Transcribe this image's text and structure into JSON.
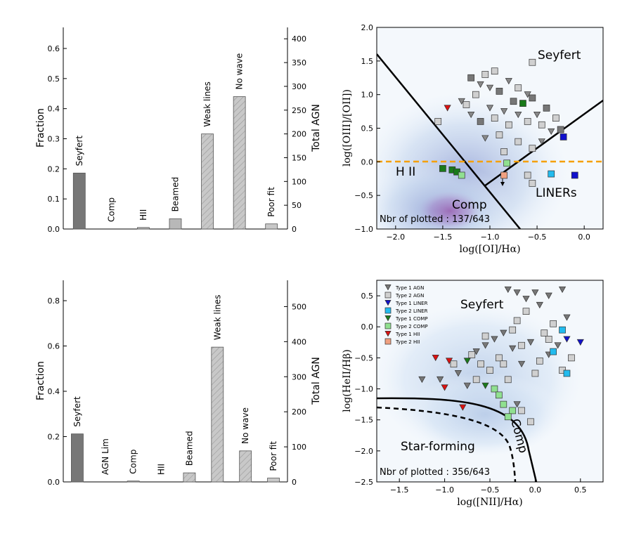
{
  "chart_data": [
    {
      "type": "bar",
      "id": "top-left",
      "categories": [
        "Seyfert",
        "Comp",
        "HII",
        "Beamed",
        "Weak lines",
        "No wave",
        "Poor fit"
      ],
      "values": [
        0.186,
        0.0,
        0.005,
        0.034,
        0.316,
        0.44,
        0.017
      ],
      "colors": [
        "#777777",
        "#b8b8b8",
        "#b8b8b8",
        "#b8b8b8",
        "#c8c8c8",
        "#c8c8c8",
        "#c8c8c8"
      ],
      "hatched": [
        false,
        false,
        false,
        false,
        true,
        true,
        false
      ],
      "ylabel": "Fraction",
      "ylabel_right": "Total AGN",
      "ylim": [
        0,
        0.67
      ],
      "yticks": [
        0.0,
        0.1,
        0.2,
        0.3,
        0.4,
        0.5,
        0.6
      ],
      "ytick_labels": [
        "0.0",
        "0.1",
        "0.2",
        "0.3",
        "0.4",
        "0.5",
        "0.6"
      ],
      "right_ylim": [
        0,
        424
      ],
      "right_yticks": [
        0,
        50,
        100,
        150,
        200,
        250,
        300,
        350,
        400
      ],
      "right_ytick_labels": [
        "0",
        "50",
        "100",
        "150",
        "200",
        "250",
        "300",
        "350",
        "400"
      ]
    },
    {
      "type": "scatter",
      "id": "top-right",
      "xlabel": "log([OI]/Hα)",
      "ylabel": "log([OIII]/[OII])",
      "xlim": [
        -2.2,
        0.2
      ],
      "ylim": [
        -1.0,
        2.0
      ],
      "xticks": [
        -2.0,
        -1.5,
        -1.0,
        -0.5,
        0.0
      ],
      "xtick_labels": [
        "−2.0",
        "−1.5",
        "−1.0",
        "−0.5",
        "0.0"
      ],
      "yticks": [
        -1.0,
        -0.5,
        0.0,
        0.5,
        1.0,
        1.5,
        2.0
      ],
      "ytick_labels": [
        "−1.0",
        "−0.5",
        "0.0",
        "0.5",
        "1.0",
        "1.5",
        "2.0"
      ],
      "region_labels": [
        "Seyfert",
        "H II",
        "Comp",
        "LINERs"
      ],
      "annotation": "Nbr of plotted : 137/643",
      "threshold_y": 0.0,
      "points": [
        {
          "x": -0.55,
          "y": 1.48,
          "m": "s",
          "c": "#d0d0d0"
        },
        {
          "x": -1.2,
          "y": 1.25,
          "m": "s",
          "c": "#777777"
        },
        {
          "x": -1.05,
          "y": 1.3,
          "m": "s",
          "c": "#d0d0d0"
        },
        {
          "x": -0.95,
          "y": 1.35,
          "m": "s",
          "c": "#d0d0d0"
        },
        {
          "x": -1.1,
          "y": 1.15,
          "m": "v",
          "c": "#888888"
        },
        {
          "x": -1.15,
          "y": 1.0,
          "m": "s",
          "c": "#d0d0d0"
        },
        {
          "x": -1.0,
          "y": 1.1,
          "m": "v",
          "c": "#888888"
        },
        {
          "x": -0.9,
          "y": 1.05,
          "m": "s",
          "c": "#777777"
        },
        {
          "x": -0.8,
          "y": 1.2,
          "m": "v",
          "c": "#888888"
        },
        {
          "x": -0.7,
          "y": 1.1,
          "m": "s",
          "c": "#d0d0d0"
        },
        {
          "x": -0.6,
          "y": 1.0,
          "m": "v",
          "c": "#888888"
        },
        {
          "x": -0.55,
          "y": 0.95,
          "m": "s",
          "c": "#777777"
        },
        {
          "x": -0.65,
          "y": 0.87,
          "m": "s",
          "c": "#1a7a1a"
        },
        {
          "x": -1.3,
          "y": 0.9,
          "m": "v",
          "c": "#888888"
        },
        {
          "x": -1.25,
          "y": 0.85,
          "m": "s",
          "c": "#d0d0d0"
        },
        {
          "x": -1.45,
          "y": 0.8,
          "m": "v",
          "c": "#dd1111"
        },
        {
          "x": -1.55,
          "y": 0.6,
          "m": "s",
          "c": "#d0d0d0"
        },
        {
          "x": -1.2,
          "y": 0.7,
          "m": "v",
          "c": "#888888"
        },
        {
          "x": -1.1,
          "y": 0.6,
          "m": "s",
          "c": "#777777"
        },
        {
          "x": -1.0,
          "y": 0.8,
          "m": "v",
          "c": "#888888"
        },
        {
          "x": -0.95,
          "y": 0.65,
          "m": "s",
          "c": "#d0d0d0"
        },
        {
          "x": -0.85,
          "y": 0.75,
          "m": "v",
          "c": "#888888"
        },
        {
          "x": -0.8,
          "y": 0.55,
          "m": "s",
          "c": "#d0d0d0"
        },
        {
          "x": -0.75,
          "y": 0.9,
          "m": "s",
          "c": "#777777"
        },
        {
          "x": -0.7,
          "y": 0.7,
          "m": "v",
          "c": "#888888"
        },
        {
          "x": -0.6,
          "y": 0.6,
          "m": "s",
          "c": "#d0d0d0"
        },
        {
          "x": -0.5,
          "y": 0.7,
          "m": "v",
          "c": "#888888"
        },
        {
          "x": -0.45,
          "y": 0.55,
          "m": "s",
          "c": "#d0d0d0"
        },
        {
          "x": -0.4,
          "y": 0.8,
          "m": "s",
          "c": "#777777"
        },
        {
          "x": -0.35,
          "y": 0.45,
          "m": "v",
          "c": "#888888"
        },
        {
          "x": -0.3,
          "y": 0.65,
          "m": "s",
          "c": "#d0d0d0"
        },
        {
          "x": -0.25,
          "y": 0.48,
          "m": "s",
          "c": "#777777"
        },
        {
          "x": -0.22,
          "y": 0.37,
          "m": "s",
          "c": "#1111cc"
        },
        {
          "x": -0.9,
          "y": 0.4,
          "m": "s",
          "c": "#d0d0d0"
        },
        {
          "x": -1.05,
          "y": 0.35,
          "m": "v",
          "c": "#888888"
        },
        {
          "x": -0.7,
          "y": 0.3,
          "m": "s",
          "c": "#d0d0d0"
        },
        {
          "x": -0.55,
          "y": 0.2,
          "m": "s",
          "c": "#d0d0d0"
        },
        {
          "x": -0.45,
          "y": 0.3,
          "m": "v",
          "c": "#888888"
        },
        {
          "x": -0.85,
          "y": 0.15,
          "m": "s",
          "c": "#d0d0d0"
        },
        {
          "x": -1.4,
          "y": -0.12,
          "m": "s",
          "c": "#1a7a1a"
        },
        {
          "x": -1.35,
          "y": -0.15,
          "m": "s",
          "c": "#1a7a1a"
        },
        {
          "x": -1.3,
          "y": -0.2,
          "m": "s",
          "c": "#90e090"
        },
        {
          "x": -1.5,
          "y": -0.1,
          "m": "s",
          "c": "#1a7a1a"
        },
        {
          "x": -0.82,
          "y": -0.02,
          "m": "s",
          "c": "#90e090"
        },
        {
          "x": -0.85,
          "y": -0.2,
          "m": "s",
          "c": "#f0a080"
        },
        {
          "x": -0.35,
          "y": -0.18,
          "m": "s",
          "c": "#22bbee"
        },
        {
          "x": -0.1,
          "y": -0.2,
          "m": "s",
          "c": "#1111cc"
        },
        {
          "x": -0.55,
          "y": -0.32,
          "m": "s",
          "c": "#d0d0d0"
        },
        {
          "x": -0.6,
          "y": -0.2,
          "m": "s",
          "c": "#d0d0d0"
        }
      ]
    },
    {
      "type": "bar",
      "id": "bottom-left",
      "categories": [
        "Seyfert",
        "AGN Lim",
        "Comp",
        "HII",
        "Beamed",
        "Weak lines",
        "No wave",
        "Poor fit"
      ],
      "values": [
        0.212,
        0.0,
        0.004,
        0.0,
        0.04,
        0.595,
        0.137,
        0.017
      ],
      "colors": [
        "#777777",
        "#b8b8b8",
        "#b8b8b8",
        "#b8b8b8",
        "#c8c8c8",
        "#c8c8c8",
        "#c8c8c8",
        "#c8c8c8"
      ],
      "hatched": [
        false,
        false,
        false,
        false,
        true,
        true,
        true,
        false
      ],
      "ylabel": "Fraction",
      "ylabel_right": "Total AGN",
      "ylim": [
        0,
        0.89
      ],
      "yticks": [
        0.0,
        0.2,
        0.4,
        0.6,
        0.8
      ],
      "ytick_labels": [
        "0.0",
        "0.2",
        "0.4",
        "0.6",
        "0.8"
      ],
      "right_ylim": [
        0,
        575
      ],
      "right_yticks": [
        0,
        100,
        200,
        300,
        400,
        500
      ],
      "right_ytick_labels": [
        "0",
        "100",
        "200",
        "300",
        "400",
        "500"
      ]
    },
    {
      "type": "scatter",
      "id": "bottom-right",
      "xlabel": "log([NII]/Hα)",
      "ylabel": "log(HeII/Hβ)",
      "xlim": [
        -1.75,
        0.75
      ],
      "ylim": [
        -2.5,
        0.75
      ],
      "xticks": [
        -1.5,
        -1.0,
        -0.5,
        0.0,
        0.5
      ],
      "xtick_labels": [
        "−1.5",
        "−1.0",
        "−0.5",
        "0.0",
        "0.5"
      ],
      "yticks": [
        -2.5,
        -2.0,
        -1.5,
        -1.0,
        -0.5,
        0.0,
        0.5
      ],
      "ytick_labels": [
        "−2.5",
        "−2.0",
        "−1.5",
        "−1.0",
        "−0.5",
        "0.0",
        "0.5"
      ],
      "region_labels": [
        "Seyfert",
        "Star-forming",
        "Comp"
      ],
      "annotation": "Nbr of plotted : 356/643",
      "legend": [
        {
          "label": "Type 1 AGN",
          "m": "v",
          "c": "#777777"
        },
        {
          "label": "Type 2 AGN",
          "m": "s",
          "c": "#d0d0d0"
        },
        {
          "label": "Type 1 LINER",
          "m": "v",
          "c": "#1111cc"
        },
        {
          "label": "Type 2 LINER",
          "m": "s",
          "c": "#22bbee"
        },
        {
          "label": "Type 1 COMP",
          "m": "v",
          "c": "#1a7a1a"
        },
        {
          "label": "Type 2 COMP",
          "m": "s",
          "c": "#90e090"
        },
        {
          "label": "Type 1 HII",
          "m": "v",
          "c": "#dd1111"
        },
        {
          "label": "Type 2 HII",
          "m": "s",
          "c": "#f0a080"
        }
      ],
      "points": [
        {
          "x": -1.1,
          "y": -0.5,
          "m": "v",
          "c": "#dd1111"
        },
        {
          "x": -0.95,
          "y": -0.55,
          "m": "v",
          "c": "#dd1111"
        },
        {
          "x": -1.0,
          "y": -0.98,
          "m": "v",
          "c": "#dd1111"
        },
        {
          "x": -0.8,
          "y": -1.3,
          "m": "v",
          "c": "#dd1111"
        },
        {
          "x": -1.25,
          "y": -0.85,
          "m": "v",
          "c": "#777777"
        },
        {
          "x": -1.05,
          "y": -0.85,
          "m": "v",
          "c": "#777777"
        },
        {
          "x": -0.75,
          "y": -0.55,
          "m": "v",
          "c": "#1a7a1a"
        },
        {
          "x": -0.55,
          "y": -0.95,
          "m": "v",
          "c": "#1a7a1a"
        },
        {
          "x": -0.9,
          "y": -0.6,
          "m": "s",
          "c": "#d0d0d0"
        },
        {
          "x": -0.85,
          "y": -0.75,
          "m": "v",
          "c": "#777777"
        },
        {
          "x": -0.7,
          "y": -0.45,
          "m": "s",
          "c": "#d0d0d0"
        },
        {
          "x": -0.65,
          "y": -0.4,
          "m": "v",
          "c": "#777777"
        },
        {
          "x": -0.6,
          "y": -0.6,
          "m": "s",
          "c": "#d0d0d0"
        },
        {
          "x": -0.55,
          "y": -0.3,
          "m": "v",
          "c": "#777777"
        },
        {
          "x": -0.5,
          "y": -0.7,
          "m": "s",
          "c": "#d0d0d0"
        },
        {
          "x": -0.45,
          "y": -0.2,
          "m": "v",
          "c": "#777777"
        },
        {
          "x": -0.4,
          "y": -0.5,
          "m": "s",
          "c": "#d0d0d0"
        },
        {
          "x": -0.35,
          "y": -0.1,
          "m": "v",
          "c": "#777777"
        },
        {
          "x": -0.3,
          "y": -0.85,
          "m": "s",
          "c": "#d0d0d0"
        },
        {
          "x": -0.25,
          "y": -0.35,
          "m": "v",
          "c": "#777777"
        },
        {
          "x": -0.2,
          "y": 0.1,
          "m": "s",
          "c": "#d0d0d0"
        },
        {
          "x": -0.15,
          "y": -0.6,
          "m": "v",
          "c": "#777777"
        },
        {
          "x": -0.1,
          "y": 0.25,
          "m": "s",
          "c": "#d0d0d0"
        },
        {
          "x": -0.05,
          "y": -0.25,
          "m": "v",
          "c": "#777777"
        },
        {
          "x": 0.0,
          "y": -0.75,
          "m": "s",
          "c": "#d0d0d0"
        },
        {
          "x": 0.05,
          "y": 0.35,
          "m": "v",
          "c": "#777777"
        },
        {
          "x": 0.1,
          "y": -0.1,
          "m": "s",
          "c": "#d0d0d0"
        },
        {
          "x": 0.15,
          "y": -0.45,
          "m": "v",
          "c": "#777777"
        },
        {
          "x": 0.2,
          "y": 0.05,
          "m": "s",
          "c": "#d0d0d0"
        },
        {
          "x": 0.25,
          "y": -0.3,
          "m": "v",
          "c": "#777777"
        },
        {
          "x": 0.3,
          "y": -0.7,
          "m": "s",
          "c": "#d0d0d0"
        },
        {
          "x": 0.35,
          "y": 0.15,
          "m": "v",
          "c": "#777777"
        },
        {
          "x": 0.4,
          "y": -0.5,
          "m": "s",
          "c": "#d0d0d0"
        },
        {
          "x": -0.3,
          "y": 0.6,
          "m": "v",
          "c": "#777777"
        },
        {
          "x": -0.2,
          "y": 0.55,
          "m": "v",
          "c": "#777777"
        },
        {
          "x": -0.1,
          "y": 0.45,
          "m": "v",
          "c": "#777777"
        },
        {
          "x": 0.3,
          "y": 0.6,
          "m": "v",
          "c": "#777777"
        },
        {
          "x": 0.15,
          "y": 0.5,
          "m": "v",
          "c": "#777777"
        },
        {
          "x": 0.0,
          "y": 0.55,
          "m": "v",
          "c": "#777777"
        },
        {
          "x": 0.35,
          "y": -0.2,
          "m": "v",
          "c": "#1111cc"
        },
        {
          "x": 0.5,
          "y": -0.25,
          "m": "v",
          "c": "#1111cc"
        },
        {
          "x": 0.2,
          "y": -0.4,
          "m": "s",
          "c": "#22bbee"
        },
        {
          "x": 0.3,
          "y": -0.05,
          "m": "s",
          "c": "#22bbee"
        },
        {
          "x": 0.35,
          "y": -0.75,
          "m": "s",
          "c": "#22bbee"
        },
        {
          "x": -0.45,
          "y": -1.0,
          "m": "s",
          "c": "#90e090"
        },
        {
          "x": -0.4,
          "y": -1.1,
          "m": "s",
          "c": "#90e090"
        },
        {
          "x": -0.35,
          "y": -1.25,
          "m": "s",
          "c": "#90e090"
        },
        {
          "x": -0.25,
          "y": -1.35,
          "m": "s",
          "c": "#90e090"
        },
        {
          "x": -0.3,
          "y": -1.45,
          "m": "s",
          "c": "#90e090"
        },
        {
          "x": -0.15,
          "y": -1.35,
          "m": "s",
          "c": "#d0d0d0"
        },
        {
          "x": -0.05,
          "y": -1.53,
          "m": "s",
          "c": "#d0d0d0"
        },
        {
          "x": -0.2,
          "y": -1.25,
          "m": "v",
          "c": "#777777"
        },
        {
          "x": -0.55,
          "y": -0.15,
          "m": "s",
          "c": "#d0d0d0"
        },
        {
          "x": -0.35,
          "y": -0.6,
          "m": "s",
          "c": "#d0d0d0"
        },
        {
          "x": -0.25,
          "y": -0.05,
          "m": "s",
          "c": "#d0d0d0"
        },
        {
          "x": -0.15,
          "y": -0.3,
          "m": "s",
          "c": "#d0d0d0"
        },
        {
          "x": 0.05,
          "y": -0.55,
          "m": "s",
          "c": "#d0d0d0"
        },
        {
          "x": 0.15,
          "y": -0.2,
          "m": "s",
          "c": "#d0d0d0"
        },
        {
          "x": -0.65,
          "y": -0.85,
          "m": "s",
          "c": "#d0d0d0"
        },
        {
          "x": -0.75,
          "y": -0.95,
          "m": "v",
          "c": "#777777"
        }
      ]
    }
  ]
}
